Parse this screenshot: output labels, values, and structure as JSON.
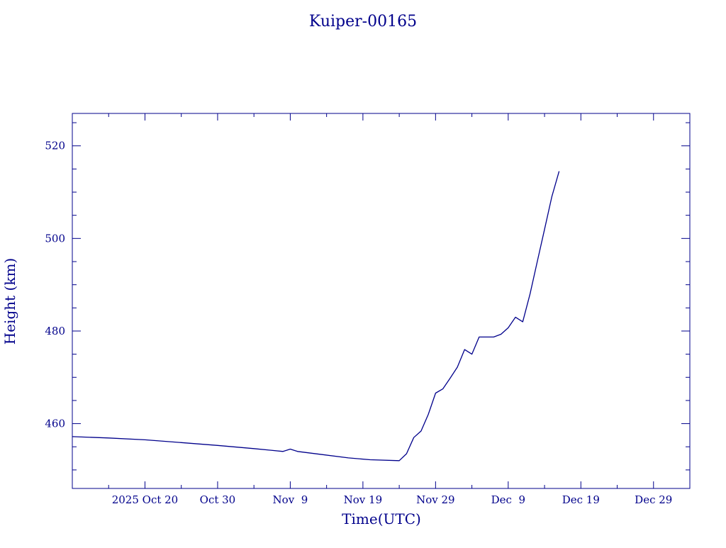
{
  "chart_data": {
    "type": "line",
    "title": "Kuiper-00165",
    "xlabel": "Time(UTC)",
    "ylabel": "Height (km)",
    "x_axis_type": "date",
    "xlim": [
      "2025-10-10",
      "2026-01-03"
    ],
    "ylim": [
      446,
      527
    ],
    "grid": false,
    "color": "#00008b",
    "x_ticks": [
      {
        "label": "2025 Oct 20",
        "date": "2025-10-20"
      },
      {
        "label": "Oct 30",
        "date": "2025-10-30"
      },
      {
        "label": "Nov  9",
        "date": "2025-11-09"
      },
      {
        "label": "Nov 19",
        "date": "2025-11-19"
      },
      {
        "label": "Nov 29",
        "date": "2025-11-29"
      },
      {
        "label": "Dec  9",
        "date": "2025-12-09"
      },
      {
        "label": "Dec 19",
        "date": "2025-12-19"
      },
      {
        "label": "Dec 29",
        "date": "2025-12-29"
      }
    ],
    "y_ticks": [
      460,
      480,
      500,
      520
    ],
    "series": [
      {
        "x": [
          "2025-10-10",
          "2025-10-15",
          "2025-10-20",
          "2025-10-25",
          "2025-10-30",
          "2025-11-04",
          "2025-11-08",
          "2025-11-09",
          "2025-11-10",
          "2025-11-13",
          "2025-11-17",
          "2025-11-20",
          "2025-11-24",
          "2025-11-25",
          "2025-11-26",
          "2025-11-27",
          "2025-11-28",
          "2025-11-29",
          "2025-11-30",
          "2025-12-01",
          "2025-12-02",
          "2025-12-03",
          "2025-12-04",
          "2025-12-05",
          "2025-12-07",
          "2025-12-08",
          "2025-12-09",
          "2025-12-10",
          "2025-12-11",
          "2025-12-12",
          "2025-12-13",
          "2025-12-14",
          "2025-12-15",
          "2025-12-16"
        ],
        "y": [
          457.2,
          456.9,
          456.5,
          455.9,
          455.3,
          454.6,
          454.0,
          454.5,
          454.0,
          453.4,
          452.6,
          452.2,
          452.0,
          453.5,
          457.0,
          458.4,
          462.0,
          466.6,
          467.5,
          469.8,
          472.2,
          476.0,
          475.0,
          478.7,
          478.7,
          479.3,
          480.7,
          483.0,
          482.0,
          488.0,
          495.0,
          502.0,
          509.0,
          514.5
        ]
      }
    ]
  }
}
